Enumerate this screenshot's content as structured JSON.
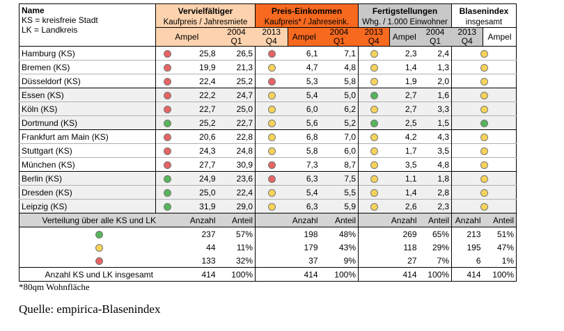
{
  "header": {
    "name_title": "Name",
    "name_line2": "KS = kreisfreie Stadt",
    "name_line3": "LK = Landkreis",
    "vervielfaeltiger": {
      "title": "Vervielfältiger",
      "subtitle": "Kaufpreis / Jahresmiete"
    },
    "preis_einkommen": {
      "title": "Preis-Einkommen",
      "subtitle": "Kaufpreis* / Jahreseink."
    },
    "fertigstellungen": {
      "title": "Fertigstellungen",
      "subtitle": "Whg. / 1.000 Einwohner"
    },
    "blasenindex": {
      "title": "Blasenindex",
      "subtitle": "insgesamt"
    },
    "ampel": "Ampel",
    "y2004": "2004",
    "y2013": "2013",
    "q1": "Q1",
    "q4": "Q4"
  },
  "colors": {
    "vervielfaeltiger_header": "#fcd3ae",
    "preis_einkommen_header": "#f7691f",
    "fertigstellungen_header": "#c8c8c8",
    "row_shade": "#f0f0f0",
    "ampel_red": "#e66464",
    "ampel_yellow": "#f7d35a",
    "ampel_green": "#56b55a"
  },
  "rows": [
    {
      "name": "Hamburg (KS)",
      "v_a": "red",
      "v_04": "25,8",
      "v_13": "26,5",
      "p_a": "red",
      "p_04": "6,1",
      "p_13": "7,1",
      "f_a": "yellow",
      "f_04": "2,3",
      "f_13": "2,4",
      "b_a": "yellow"
    },
    {
      "name": "Bremen (KS)",
      "v_a": "red",
      "v_04": "19,9",
      "v_13": "21,3",
      "p_a": "yellow",
      "p_04": "4,7",
      "p_13": "4,8",
      "f_a": "yellow",
      "f_04": "1,4",
      "f_13": "1,3",
      "b_a": "yellow"
    },
    {
      "name": "Düsseldorf (KS)",
      "v_a": "red",
      "v_04": "22,4",
      "v_13": "25,2",
      "p_a": "red",
      "p_04": "5,3",
      "p_13": "5,8",
      "f_a": "yellow",
      "f_04": "1,9",
      "f_13": "2,0",
      "b_a": "yellow"
    },
    {
      "name": "Essen (KS)",
      "v_a": "red",
      "v_04": "22,2",
      "v_13": "24,7",
      "p_a": "yellow",
      "p_04": "5,4",
      "p_13": "5,0",
      "f_a": "green",
      "f_04": "2,7",
      "f_13": "1,6",
      "b_a": "yellow"
    },
    {
      "name": "Köln (KS)",
      "v_a": "red",
      "v_04": "22,7",
      "v_13": "25,0",
      "p_a": "yellow",
      "p_04": "6,0",
      "p_13": "6,2",
      "f_a": "yellow",
      "f_04": "2,7",
      "f_13": "3,3",
      "b_a": "yellow"
    },
    {
      "name": "Dortmund (KS)",
      "v_a": "green",
      "v_04": "25,2",
      "v_13": "22,7",
      "p_a": "yellow",
      "p_04": "5,6",
      "p_13": "5,2",
      "f_a": "green",
      "f_04": "2,5",
      "f_13": "1,5",
      "b_a": "green"
    },
    {
      "name": "Frankfurt am Main (KS)",
      "v_a": "red",
      "v_04": "20,6",
      "v_13": "22,8",
      "p_a": "yellow",
      "p_04": "6,8",
      "p_13": "7,0",
      "f_a": "yellow",
      "f_04": "4,2",
      "f_13": "4,3",
      "b_a": "yellow"
    },
    {
      "name": "Stuttgart (KS)",
      "v_a": "red",
      "v_04": "24,3",
      "v_13": "24,8",
      "p_a": "yellow",
      "p_04": "5,8",
      "p_13": "6,0",
      "f_a": "yellow",
      "f_04": "1,7",
      "f_13": "3,5",
      "b_a": "yellow"
    },
    {
      "name": "München (KS)",
      "v_a": "red",
      "v_04": "27,7",
      "v_13": "30,9",
      "p_a": "red",
      "p_04": "7,3",
      "p_13": "8,7",
      "f_a": "yellow",
      "f_04": "3,5",
      "f_13": "4,8",
      "b_a": "yellow"
    },
    {
      "name": "Berlin (KS)",
      "v_a": "green",
      "v_04": "24,9",
      "v_13": "23,6",
      "p_a": "red",
      "p_04": "6,3",
      "p_13": "7,5",
      "f_a": "yellow",
      "f_04": "1,1",
      "f_13": "1,8",
      "b_a": "yellow"
    },
    {
      "name": "Dresden (KS)",
      "v_a": "green",
      "v_04": "25,0",
      "v_13": "22,4",
      "p_a": "yellow",
      "p_04": "5,4",
      "p_13": "5,5",
      "f_a": "yellow",
      "f_04": "1,4",
      "f_13": "2,8",
      "b_a": "yellow"
    },
    {
      "name": "Leipzig (KS)",
      "v_a": "green",
      "v_04": "31,9",
      "v_13": "29,0",
      "p_a": "yellow",
      "p_04": "6,3",
      "p_13": "5,9",
      "f_a": "yellow",
      "f_04": "2,6",
      "f_13": "2,3",
      "b_a": "yellow"
    }
  ],
  "summary": {
    "label": "Verteilung über alle KS und LK",
    "anzahl": "Anzahl",
    "anteil": "Anteil",
    "rows": [
      {
        "ampel": "green",
        "v_n": "237",
        "v_p": "57%",
        "p_n": "198",
        "p_p": "48%",
        "f_n": "269",
        "f_p": "65%",
        "b_n": "213",
        "b_p": "51%"
      },
      {
        "ampel": "yellow",
        "v_n": "44",
        "v_p": "11%",
        "p_n": "179",
        "p_p": "43%",
        "f_n": "118",
        "f_p": "29%",
        "b_n": "195",
        "b_p": "47%"
      },
      {
        "ampel": "red",
        "v_n": "133",
        "v_p": "32%",
        "p_n": "37",
        "p_p": "9%",
        "f_n": "27",
        "f_p": "7%",
        "b_n": "6",
        "b_p": "1%"
      }
    ],
    "total": {
      "label": "Anzahl KS und LK insgesamt",
      "v_n": "414",
      "v_p": "100%",
      "p_n": "414",
      "p_p": "100%",
      "f_n": "414",
      "f_p": "100%",
      "b_n": "414",
      "b_p": "100%"
    }
  },
  "footnote": "*80qm Wohnfläche",
  "source": "Quelle: empirica-Blasenindex"
}
